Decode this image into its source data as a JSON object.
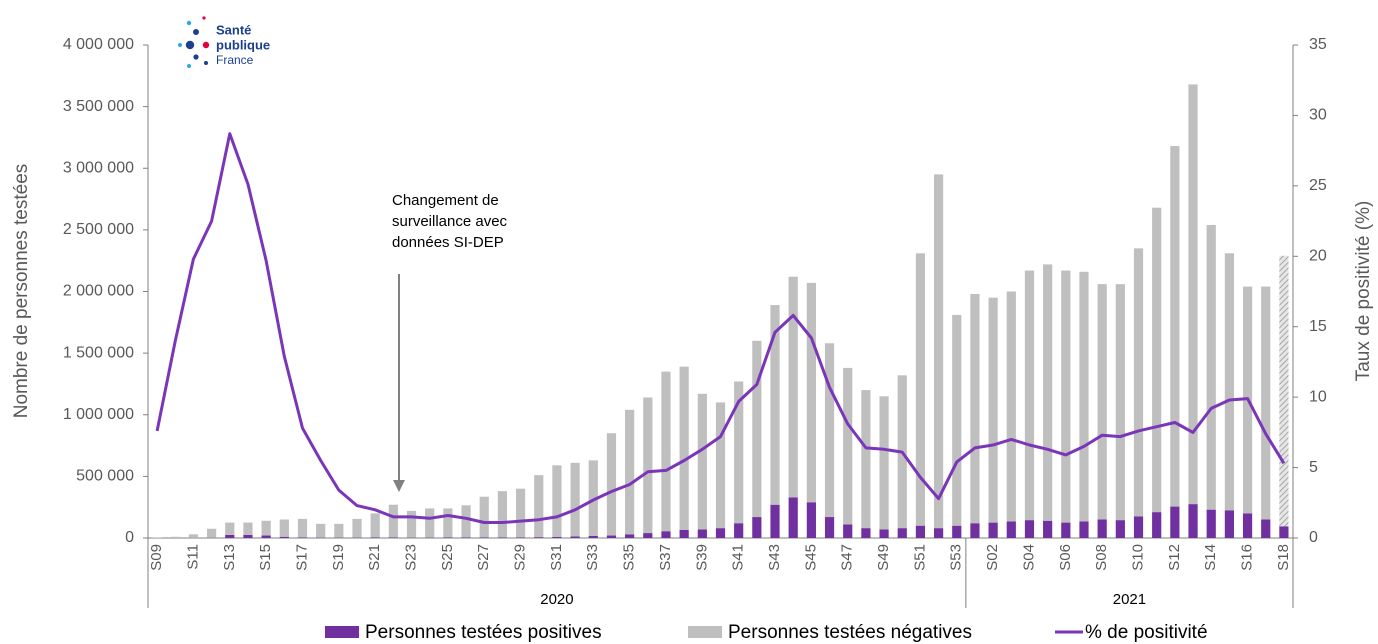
{
  "chart_data": {
    "type": "bar",
    "logo": [
      "Santé",
      "publique",
      "France"
    ],
    "annotation": [
      "Changement de",
      "surveillance avec",
      "données SI-DEP"
    ],
    "y_label": "Nombre de personnes testées",
    "y2_label": "Taux de positivité (%)",
    "x_groups": [
      "2020",
      "2021"
    ],
    "stacked": true,
    "legend": "bottom",
    "categories": [
      "S09",
      null,
      "S11",
      null,
      "S13",
      null,
      "S15",
      null,
      "S17",
      null,
      "S19",
      null,
      "S21",
      null,
      "S23",
      null,
      "S25",
      null,
      "S27",
      null,
      "S29",
      null,
      "S31",
      null,
      "S33",
      null,
      "S35",
      null,
      "S37",
      null,
      "S39",
      null,
      "S41",
      null,
      "S43",
      null,
      "S45",
      null,
      "S47",
      null,
      "S49",
      null,
      "S51",
      null,
      "S53",
      null,
      "S02",
      null,
      "S04",
      null,
      "S06",
      null,
      "S08",
      null,
      "S10",
      null,
      "S12",
      null,
      "S14",
      null,
      "S16",
      null,
      "S18"
    ],
    "ylim": [
      0,
      4000000
    ],
    "yticks": [
      0,
      {
        "value": 500000,
        "label": "500 000"
      },
      {
        "value": 1000000,
        "label": "1 000 000"
      },
      {
        "value": 1500000,
        "label": "1 500 000"
      },
      {
        "value": 2000000,
        "label": "2 000 000"
      },
      {
        "value": 2500000,
        "label": "2 500 000"
      },
      {
        "value": 3000000,
        "label": "3 000 000"
      },
      {
        "value": 3500000,
        "label": "3 500 000"
      },
      {
        "value": 4000000,
        "label": "4 000 000"
      }
    ],
    "y2lim": [
      0,
      35
    ],
    "y2ticks": [
      0,
      5,
      10,
      15,
      20,
      25,
      30,
      35
    ],
    "series": [
      {
        "name": "Personnes testées positives",
        "color": "#7030a0",
        "values": [
          0,
          0,
          1000,
          2000,
          25000,
          25000,
          20000,
          10000,
          5000,
          3000,
          3000,
          3000,
          4000,
          4000,
          3000,
          3000,
          4000,
          4000,
          4000,
          4000,
          5000,
          7000,
          9000,
          12000,
          17000,
          20000,
          30000,
          40000,
          55000,
          65000,
          70000,
          80000,
          120000,
          170000,
          270000,
          330000,
          290000,
          170000,
          110000,
          80000,
          70000,
          80000,
          100000,
          80000,
          100000,
          120000,
          125000,
          135000,
          145000,
          140000,
          125000,
          135000,
          150000,
          145000,
          175000,
          210000,
          255000,
          275000,
          230000,
          225000,
          200000,
          150000,
          95000
        ]
      },
      {
        "name": "Personnes testées négatives",
        "color": "#bfbfbf",
        "values": [
          5000,
          10000,
          29000,
          73000,
          100000,
          100000,
          120000,
          140000,
          150000,
          112000,
          112000,
          152000,
          196000,
          266000,
          217000,
          237000,
          236000,
          261000,
          331000,
          376000,
          395000,
          503000,
          581000,
          598000,
          613000,
          830000,
          1010000,
          1100000,
          1295000,
          1325000,
          1100000,
          1020000,
          1150000,
          1430000,
          1620000,
          1790000,
          1780000,
          1410000,
          1270000,
          1120000,
          1080000,
          1240000,
          2210000,
          2870000,
          1710000,
          1860000,
          1825000,
          1865000,
          2025000,
          2080000,
          2045000,
          2025000,
          1910000,
          1915000,
          2175000,
          2470000,
          2925000,
          3405000,
          2310000,
          2085000,
          1840000,
          1890000,
          2195000
        ]
      },
      {
        "name": "% de positivité",
        "color": "#7b35b8",
        "type": "line",
        "axis": "y2",
        "values": [
          7.6,
          14,
          19.8,
          22.5,
          28.7,
          25.1,
          19.7,
          12.9,
          7.8,
          5.5,
          3.4,
          2.3,
          2.0,
          1.5,
          1.5,
          1.4,
          1.6,
          1.4,
          1.1,
          1.1,
          1.2,
          1.3,
          1.5,
          2.0,
          2.7,
          3.3,
          3.8,
          4.7,
          4.8,
          5.5,
          6.3,
          7.2,
          9.7,
          10.9,
          14.6,
          15.8,
          14.2,
          10.7,
          8.1,
          6.4,
          6.3,
          6.1,
          4.3,
          2.8,
          5.4,
          6.4,
          6.6,
          7.0,
          6.6,
          6.3,
          5.9,
          6.5,
          7.3,
          7.2,
          7.6,
          7.9,
          8.2,
          7.5,
          9.2,
          9.8,
          9.9,
          7.4,
          5.3
        ]
      }
    ]
  }
}
